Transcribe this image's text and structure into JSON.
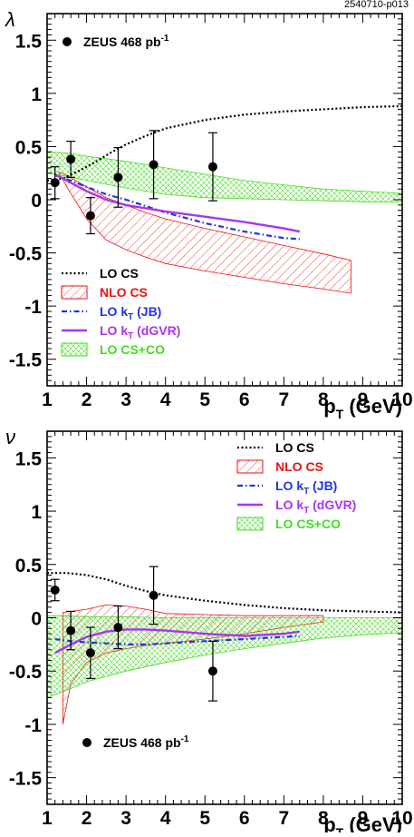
{
  "figure_id": "2540710-p013",
  "chart_data": [
    {
      "type": "scatter",
      "ylabel": "λ",
      "xlabel": "p",
      "xlabel_sub": "T",
      "xlabel_unit": " (GeV)",
      "xlim": [
        1,
        10
      ],
      "ylim": [
        -1.75,
        1.75
      ],
      "xticks": [
        1,
        2,
        3,
        4,
        5,
        6,
        7,
        8,
        9,
        10
      ],
      "yticks": [
        -1.5,
        -1,
        -0.5,
        0,
        0.5,
        1,
        1.5
      ],
      "ytick_labels": [
        "-1.5",
        "-1",
        "-0.5",
        "0",
        "0.5",
        "1",
        "1.5"
      ],
      "data": {
        "name": "ZEUS 468 pb",
        "name_sup": "-1",
        "x": [
          1.2,
          1.6,
          2.1,
          2.8,
          3.7,
          5.2
        ],
        "y": [
          0.16,
          0.38,
          -0.15,
          0.21,
          0.33,
          0.31
        ],
        "err": [
          0.15,
          0.17,
          0.17,
          0.28,
          0.32,
          0.32
        ]
      },
      "curves": [
        {
          "name": "LO CS",
          "style": "dotted",
          "color": "#000000",
          "x": [
            1,
            1.4,
            1.8,
            2.2,
            2.6,
            3,
            3.5,
            4,
            5,
            6,
            7,
            8,
            9,
            10
          ],
          "y": [
            0.18,
            0.2,
            0.27,
            0.35,
            0.44,
            0.52,
            0.6,
            0.67,
            0.75,
            0.8,
            0.83,
            0.85,
            0.87,
            0.88
          ]
        },
        {
          "name": "LO k",
          "sub": "T",
          "suffix": " (JB)",
          "style": "dashdot",
          "color": "#2233dd",
          "x": [
            1.2,
            1.6,
            2,
            2.5,
            3,
            3.5,
            4,
            5,
            6,
            7,
            7.4
          ],
          "y": [
            0.23,
            0.18,
            0.12,
            0.05,
            0,
            -0.06,
            -0.12,
            -0.22,
            -0.3,
            -0.36,
            -0.37
          ]
        },
        {
          "name": "LO k",
          "sub": "T",
          "suffix": " (dGVR)",
          "style": "solid",
          "color": "#aa33ee",
          "x": [
            1.2,
            1.6,
            2,
            2.5,
            3,
            3.5,
            4,
            5,
            6,
            7,
            7.4
          ],
          "y": [
            0.24,
            0.16,
            0.08,
            0,
            -0.05,
            -0.08,
            -0.11,
            -0.16,
            -0.21,
            -0.27,
            -0.3
          ]
        }
      ],
      "bands": [
        {
          "name": "NLO CS",
          "color": "#ee1111",
          "hatch": "single",
          "x": [
            1.3,
            1.5,
            2,
            2.5,
            3,
            3.5,
            4,
            5,
            6,
            7,
            8,
            8.7
          ],
          "upper": [
            0.26,
            0.23,
            0.12,
            0.02,
            -0.05,
            -0.12,
            -0.18,
            -0.27,
            -0.35,
            -0.43,
            -0.51,
            -0.57
          ],
          "lower": [
            0.26,
            0.12,
            -0.18,
            -0.38,
            -0.47,
            -0.54,
            -0.6,
            -0.67,
            -0.73,
            -0.79,
            -0.84,
            -0.88
          ]
        },
        {
          "name": "LO CS+CO",
          "color": "#44dd22",
          "hatch": "cross",
          "x": [
            1,
            1.5,
            2,
            3,
            4,
            5,
            6,
            7,
            8,
            9,
            10
          ],
          "upper": [
            0.45,
            0.44,
            0.41,
            0.36,
            0.3,
            0.24,
            0.18,
            0.14,
            0.1,
            0.08,
            0.06
          ],
          "lower": [
            0.25,
            0.22,
            0.18,
            0.11,
            0.05,
            0.02,
            0.01,
            0,
            -0.01,
            -0.02,
            -0.02
          ]
        }
      ],
      "legend_position": "bottom-left",
      "legend_order": [
        "LO CS",
        "NLO CS",
        "LO k_T (JB)",
        "LO k_T (dGVR)",
        "LO CS+CO"
      ],
      "data_legend_position": "top-left"
    },
    {
      "type": "scatter",
      "ylabel": "ν",
      "xlabel": "p",
      "xlabel_sub": "T",
      "xlabel_unit": " (GeV)",
      "xlim": [
        1,
        10
      ],
      "ylim": [
        -1.75,
        1.75
      ],
      "xticks": [
        1,
        2,
        3,
        4,
        5,
        6,
        7,
        8,
        9,
        10
      ],
      "yticks": [
        -1.5,
        -1,
        -0.5,
        0,
        0.5,
        1,
        1.5
      ],
      "ytick_labels": [
        "-1.5",
        "-1",
        "-0.5",
        "0",
        "0.5",
        "1",
        "1.5"
      ],
      "data": {
        "name": "ZEUS 468 pb",
        "name_sup": "-1",
        "x": [
          1.2,
          1.6,
          2.1,
          2.8,
          3.7,
          5.2
        ],
        "y": [
          0.26,
          -0.12,
          -0.33,
          -0.09,
          0.21,
          -0.5
        ],
        "err": [
          0.1,
          0.18,
          0.24,
          0.2,
          0.27,
          0.28
        ]
      },
      "curves": [
        {
          "name": "LO CS",
          "style": "dotted",
          "color": "#000000",
          "x": [
            1,
            1.5,
            2,
            2.5,
            3,
            3.5,
            4,
            5,
            6,
            7,
            8,
            9,
            10
          ],
          "y": [
            0.42,
            0.42,
            0.4,
            0.36,
            0.3,
            0.25,
            0.21,
            0.16,
            0.12,
            0.09,
            0.07,
            0.06,
            0.05
          ]
        },
        {
          "name": "LO k",
          "sub": "T",
          "suffix": " (JB)",
          "style": "dashdot",
          "color": "#2233dd",
          "x": [
            1.2,
            1.6,
            2,
            2.5,
            3,
            3.5,
            4,
            5,
            6,
            7,
            7.4
          ],
          "y": [
            -0.2,
            -0.22,
            -0.23,
            -0.24,
            -0.25,
            -0.25,
            -0.24,
            -0.22,
            -0.2,
            -0.18,
            -0.17
          ]
        },
        {
          "name": "LO k",
          "sub": "T",
          "suffix": " (dGVR)",
          "style": "solid",
          "color": "#aa33ee",
          "x": [
            1.2,
            1.6,
            2,
            2.5,
            3,
            3.5,
            4,
            5,
            6,
            7,
            7.4
          ],
          "y": [
            -0.33,
            -0.25,
            -0.18,
            -0.13,
            -0.11,
            -0.11,
            -0.12,
            -0.15,
            -0.17,
            -0.15,
            -0.13
          ]
        }
      ],
      "bands": [
        {
          "name": "NLO CS",
          "color": "#ee1111",
          "hatch": "single",
          "x": [
            1.4,
            1.6,
            2,
            2.5,
            3,
            3.5,
            4,
            5,
            6,
            7,
            8
          ],
          "upper": [
            0.05,
            0.06,
            0.08,
            0.12,
            0.11,
            0.08,
            0.04,
            0.03,
            0.02,
            0.02,
            0.02
          ],
          "lower": [
            -1,
            -0.62,
            -0.42,
            -0.33,
            -0.29,
            -0.26,
            -0.24,
            -0.2,
            -0.15,
            -0.09,
            -0.04
          ]
        },
        {
          "name": "LO CS+CO",
          "color": "#44dd22",
          "hatch": "cross",
          "x": [
            1,
            1.5,
            2,
            3,
            4,
            5,
            6,
            7,
            8,
            9,
            10
          ],
          "upper": [
            0.02,
            0.02,
            0.01,
            0.01,
            0.0,
            0.0,
            0.0,
            0.0,
            0.0,
            0.0,
            0.0
          ],
          "lower": [
            -0.75,
            -0.68,
            -0.6,
            -0.5,
            -0.42,
            -0.35,
            -0.29,
            -0.24,
            -0.19,
            -0.16,
            -0.14
          ]
        }
      ],
      "legend_position": "top-right",
      "legend_order": [
        "LO CS",
        "NLO CS",
        "LO k_T (JB)",
        "LO k_T (dGVR)",
        "LO CS+CO"
      ],
      "data_legend_position": "bottom-left"
    }
  ]
}
